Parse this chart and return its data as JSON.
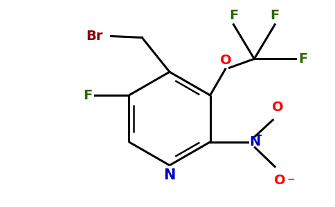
{
  "background_color": "#ffffff",
  "atom_colors": {
    "C": "#000000",
    "N_ring": "#0000cc",
    "O": "#ff0000",
    "F": "#336600",
    "Br": "#8b0000"
  },
  "figsize": [
    4.84,
    3.0
  ],
  "dpi": 100,
  "lw": 1.8,
  "fs": 13
}
